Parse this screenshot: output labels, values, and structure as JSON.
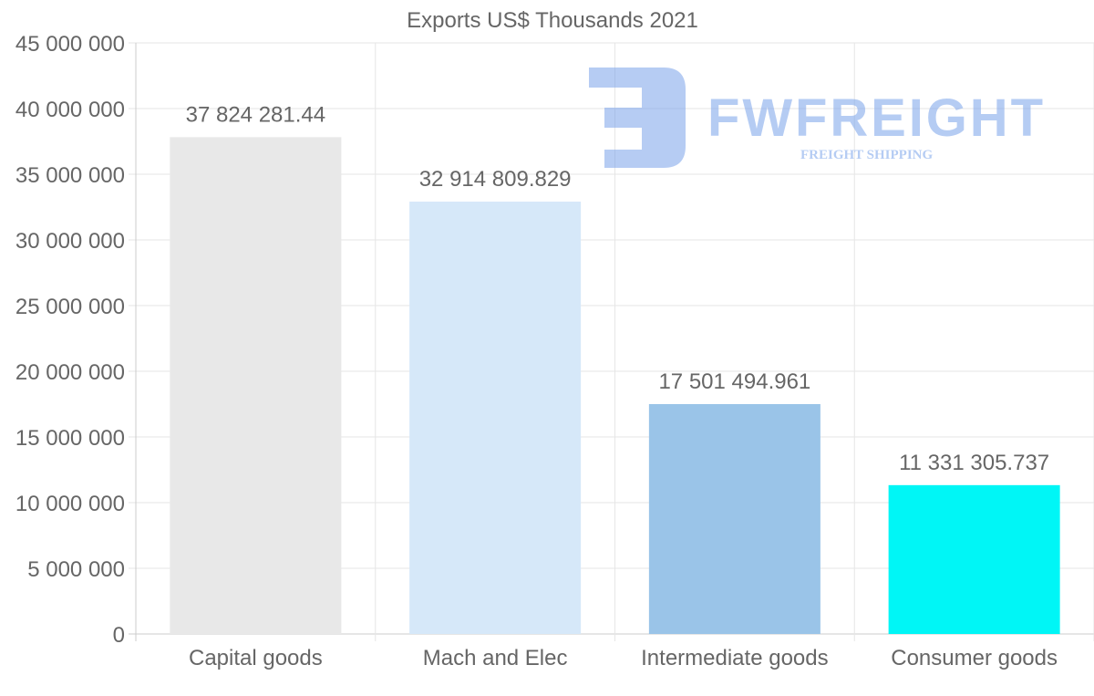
{
  "watermark": {
    "brand": "FWFREIGHT",
    "tagline": "FREIGHT SHIPPING"
  },
  "chart_data": {
    "type": "bar",
    "title": "Exports US$ Thousands 2021",
    "categories": [
      "Capital goods",
      "Mach and Elec",
      "Intermediate goods",
      "Consumer goods"
    ],
    "values": [
      37824281.44,
      32914809.829,
      17501494.961,
      11331305.737
    ],
    "value_labels": [
      "37 824 281.44",
      "32 914 809.829",
      "17 501 494.961",
      "11 331 305.737"
    ],
    "colors": [
      "#e8e8e8",
      "#d6e8f9",
      "#9ac4e8",
      "#00f6f6"
    ],
    "ylim": [
      0,
      45000000
    ],
    "yticks": [
      0,
      5000000,
      10000000,
      15000000,
      20000000,
      25000000,
      30000000,
      35000000,
      40000000,
      45000000
    ],
    "ytick_labels": [
      "0",
      "5 000 000",
      "10 000 000",
      "15 000 000",
      "20 000 000",
      "25 000 000",
      "30 000 000",
      "35 000 000",
      "40 000 000",
      "45 000 000"
    ],
    "xlabel": "",
    "ylabel": "",
    "grid": true,
    "legend": "none"
  }
}
